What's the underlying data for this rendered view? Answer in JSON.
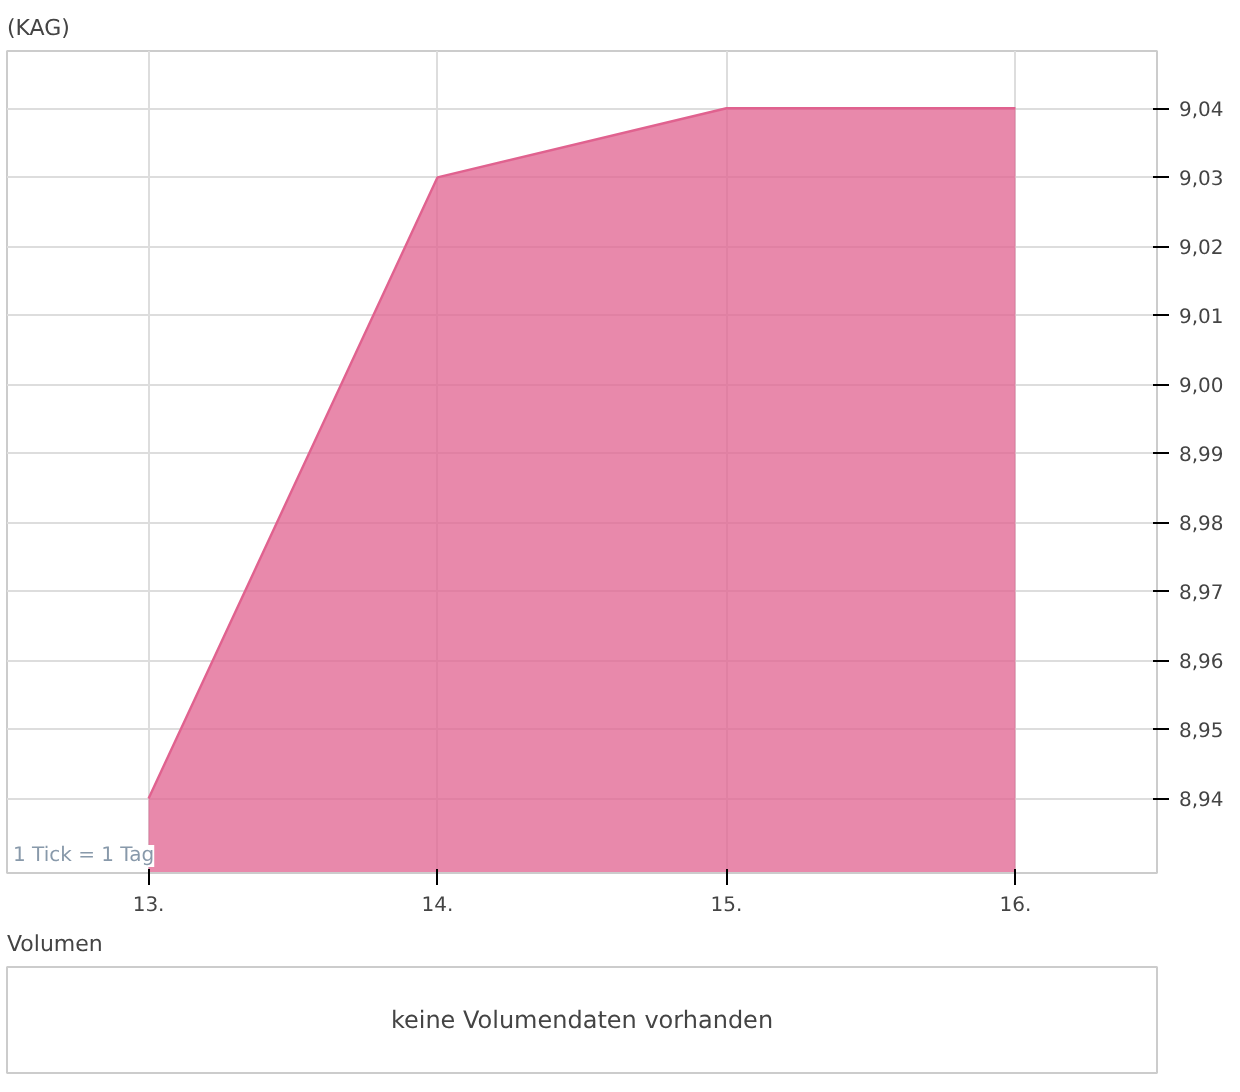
{
  "chart_data": [
    {
      "type": "area",
      "title": "(KAG)",
      "categories": [
        "13.",
        "14.",
        "15.",
        "16."
      ],
      "series": [
        {
          "color": "#e0628f",
          "values": [
            8.94,
            9.03,
            9.04,
            9.04
          ]
        }
      ],
      "ylim": [
        8.9292,
        9.0483
      ],
      "yticks": [
        {
          "value": 8.94,
          "label": "8,94"
        },
        {
          "value": 8.95,
          "label": "8,95"
        },
        {
          "value": 8.96,
          "label": "8,96"
        },
        {
          "value": 8.97,
          "label": "8,97"
        },
        {
          "value": 8.98,
          "label": "8,98"
        },
        {
          "value": 8.99,
          "label": "8,99"
        },
        {
          "value": 9.0,
          "label": "9,00"
        },
        {
          "value": 9.01,
          "label": "9,01"
        },
        {
          "value": 9.02,
          "label": "9,02"
        },
        {
          "value": 9.03,
          "label": "9,03"
        },
        {
          "value": 9.04,
          "label": "9,04"
        }
      ],
      "grid": true,
      "annotations": [
        "1 Tick = 1 Tag"
      ]
    },
    {
      "type": "other",
      "title": "Volumen",
      "annotations": [
        "keine Volumendaten vorhanden"
      ]
    }
  ]
}
